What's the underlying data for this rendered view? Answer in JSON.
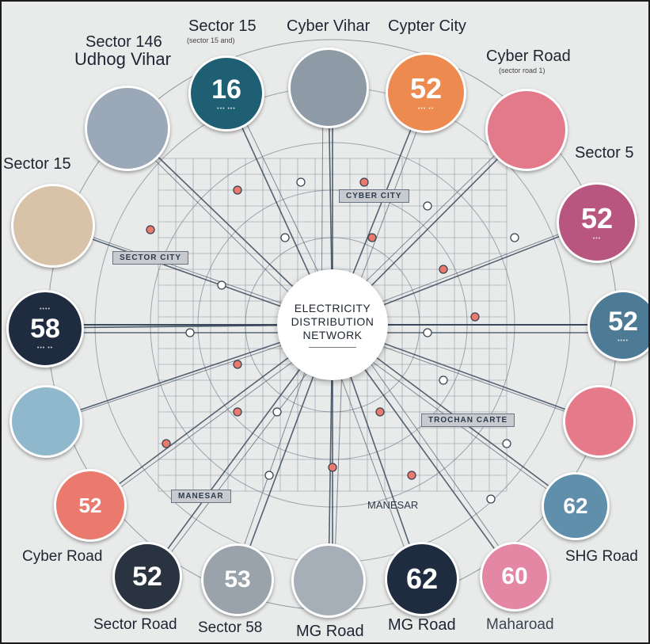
{
  "center": {
    "line1": "ELECTRICITY",
    "line2": "DISTRIBUTION",
    "line3": "NETWORK"
  },
  "labels": {
    "sector_15_top": "Sector 15",
    "sector_15_top_sub": "(sector 15 and)",
    "cyber_vihar": "Cyber Vihar",
    "cypter_city": "Cypter City",
    "sector_146": "Sector 146",
    "udhog_vihar": "Udhog Vihar",
    "cyber_road_top": "Cyber Road",
    "cyber_road_top_sub": "(sector road 1)",
    "sector_15_left": "Sector 15",
    "sector_5_right": "Sector 5",
    "cyber_road_bottom": "Cyber Road",
    "sector_road": "Sector Road",
    "sector_58": "Sector 58",
    "mg_road_1": "MG Road",
    "mg_road_2": "MG Road",
    "maharoad": "Maharoad",
    "shg_road": "SHG Road"
  },
  "tags": {
    "cyber_city": "CYBER CITY",
    "sector_city": "SECTOR CITY",
    "trochan_carte": "TROCHAN CARTE",
    "manesar_left": "MANESAR",
    "manesar_right": "MANESAR"
  },
  "nodes": {
    "n16": "16",
    "n52_top": "52",
    "n58": "58",
    "n52_right": "52",
    "n52_far_right": "52",
    "n52_bottom_left": "52",
    "n62_right": "62",
    "n52_bottom": "52",
    "n53_bottom": "53",
    "n62_bottom": "62",
    "n60_bottom": "60"
  },
  "colors": {
    "background": "#e9eaea",
    "navy": "#1f3a56",
    "teal": "#1f5f73",
    "orange": "#ec8a4f",
    "pink": "#e0708a",
    "magenta": "#b8567f",
    "steel": "#4d7a94",
    "coral": "#e97a6d",
    "grey": "#868e98",
    "dark": "#2a3340",
    "line": "#3a4a5c"
  }
}
